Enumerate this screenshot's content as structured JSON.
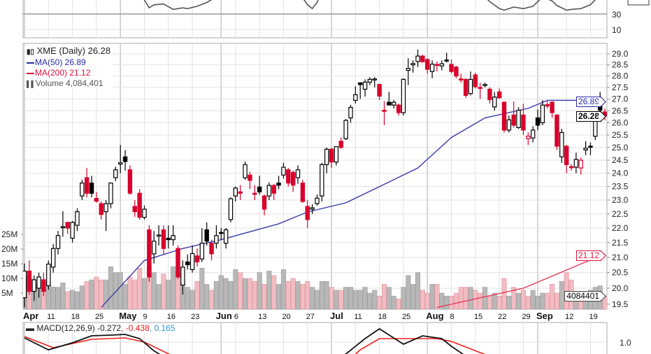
{
  "legend": {
    "title": "XME (Daily) 26.28",
    "ma50": "MA(50) 26.89",
    "ma200": "MA(200) 21.12",
    "volume": "Volume 4,084,401"
  },
  "macd_legend": {
    "label": "MACD(12,26,9) -0.272",
    "signal": ", -0.438",
    "hist": ", 0.165"
  },
  "tags": {
    "ma50": "26.89",
    "close": "26.28",
    "ma200": "21.12",
    "volume": "4084401"
  },
  "colors": {
    "up": "#000000",
    "down": "#d8002c",
    "ma50": "#3a3aaa",
    "ma200": "#e63a5a",
    "vol_up": "#b8b8b8",
    "vol_down": "#f2bcc2",
    "grid": "#e2e2e2"
  },
  "chart_data": {
    "type": "candlestick",
    "title": "XME (Daily)",
    "price_scale": "log",
    "ylim": [
      19.5,
      29.0
    ],
    "price_ticks": [
      "19.5",
      "20.0",
      "20.5",
      "21.0",
      "21.5",
      "22.0",
      "22.5",
      "23.0",
      "23.5",
      "24.0",
      "24.5",
      "25.0",
      "25.5",
      "26.0",
      "26.5",
      "27.0",
      "27.5",
      "28.0",
      "28.5",
      "29.0"
    ],
    "volume_ticks": [
      {
        "v": 5,
        "label": "5M"
      },
      {
        "v": 10,
        "label": "10M"
      },
      {
        "v": 15,
        "label": "15M"
      },
      {
        "v": 20,
        "label": "20M"
      },
      {
        "v": 25,
        "label": "25M"
      }
    ],
    "rsi_ticks": [
      {
        "v": 30,
        "label": "30"
      },
      {
        "v": 10,
        "label": "10"
      }
    ],
    "macd_ticks": [
      {
        "v": 1.0,
        "label": "1.0"
      }
    ],
    "x_ticks": [
      {
        "i": 0,
        "label": "Apr",
        "month": true
      },
      {
        "i": 5,
        "label": "11"
      },
      {
        "i": 10,
        "label": "18"
      },
      {
        "i": 15,
        "label": "25"
      },
      {
        "i": 20,
        "label": "May",
        "month": true
      },
      {
        "i": 25,
        "label": "9"
      },
      {
        "i": 30,
        "label": "16"
      },
      {
        "i": 35,
        "label": "23"
      },
      {
        "i": 41,
        "label": "Jun",
        "month": true
      },
      {
        "i": 44,
        "label": "6"
      },
      {
        "i": 49,
        "label": "13"
      },
      {
        "i": 54,
        "label": "20"
      },
      {
        "i": 59,
        "label": "27"
      },
      {
        "i": 64,
        "label": "Jul",
        "month": true
      },
      {
        "i": 69,
        "label": "11"
      },
      {
        "i": 74,
        "label": "18"
      },
      {
        "i": 79,
        "label": "25"
      },
      {
        "i": 84,
        "label": "Aug",
        "month": true
      },
      {
        "i": 89,
        "label": "8"
      },
      {
        "i": 94,
        "label": "15"
      },
      {
        "i": 99,
        "label": "22"
      },
      {
        "i": 104,
        "label": "29"
      },
      {
        "i": 107,
        "label": "Sep",
        "month": true
      },
      {
        "i": 113,
        "label": "12"
      },
      {
        "i": 118,
        "label": "19"
      }
    ],
    "ohlc": [
      [
        19.7,
        20.8,
        19.4,
        20.55
      ],
      [
        20.55,
        20.9,
        19.8,
        19.9
      ],
      [
        19.9,
        20.4,
        19.6,
        20.27
      ],
      [
        20.0,
        20.5,
        19.7,
        20.36
      ],
      [
        20.27,
        20.5,
        19.75,
        19.9
      ],
      [
        20.08,
        20.9,
        19.95,
        20.78
      ],
      [
        20.68,
        21.45,
        20.5,
        21.3
      ],
      [
        21.3,
        21.9,
        21.1,
        21.74
      ],
      [
        22.02,
        22.6,
        21.7,
        22.05
      ],
      [
        22.2,
        22.2,
        21.8,
        22.0
      ],
      [
        21.65,
        22.25,
        21.5,
        22.2
      ],
      [
        22.1,
        22.7,
        21.9,
        22.58
      ],
      [
        23.15,
        23.75,
        23.0,
        23.63
      ],
      [
        23.83,
        24.2,
        23.1,
        23.25
      ],
      [
        23.63,
        23.9,
        23.1,
        23.25
      ],
      [
        23.06,
        23.3,
        22.9,
        22.96
      ],
      [
        22.87,
        22.95,
        22.3,
        22.48
      ],
      [
        22.58,
        23.0,
        21.9,
        22.87
      ],
      [
        22.87,
        23.65,
        22.7,
        23.63
      ],
      [
        23.83,
        24.25,
        23.7,
        24.13
      ],
      [
        24.35,
        25.1,
        24.0,
        24.4
      ],
      [
        24.63,
        24.9,
        24.1,
        24.45
      ],
      [
        24.13,
        24.3,
        23.2,
        23.25
      ],
      [
        22.77,
        23.0,
        22.4,
        22.58
      ],
      [
        23.25,
        23.4,
        22.3,
        22.38
      ],
      [
        22.38,
        22.8,
        22.3,
        22.67
      ],
      [
        21.94,
        22.1,
        20.2,
        20.36
      ],
      [
        21.12,
        21.9,
        20.8,
        21.55
      ],
      [
        21.74,
        22.1,
        21.4,
        21.76
      ],
      [
        21.94,
        22.1,
        21.1,
        21.3
      ],
      [
        21.65,
        22.1,
        21.3,
        21.6
      ],
      [
        21.6,
        22.1,
        21.4,
        21.74
      ],
      [
        21.3,
        21.4,
        20.3,
        20.36
      ],
      [
        20.1,
        20.9,
        19.8,
        20.68
      ],
      [
        20.85,
        21.1,
        20.6,
        20.76
      ],
      [
        20.6,
        21.4,
        20.5,
        21.13
      ],
      [
        21.05,
        21.3,
        20.7,
        20.85
      ],
      [
        20.95,
        22.0,
        20.85,
        21.48
      ],
      [
        21.94,
        22.2,
        21.4,
        21.55
      ],
      [
        21.48,
        21.6,
        20.9,
        21.12
      ],
      [
        21.48,
        22.1,
        21.3,
        21.74
      ],
      [
        21.85,
        22.0,
        21.6,
        21.82
      ],
      [
        21.48,
        22.0,
        21.3,
        21.94
      ],
      [
        22.3,
        23.1,
        22.2,
        23.05
      ],
      [
        23.15,
        23.5,
        22.95,
        23.44
      ],
      [
        23.3,
        23.55,
        23.0,
        23.25
      ],
      [
        23.83,
        24.45,
        23.75,
        24.33
      ],
      [
        23.93,
        24.05,
        23.4,
        23.73
      ],
      [
        23.25,
        23.55,
        23.0,
        23.25
      ],
      [
        23.48,
        23.9,
        23.2,
        23.3
      ],
      [
        23.15,
        23.2,
        22.45,
        22.67
      ],
      [
        23.15,
        23.65,
        23.0,
        23.54
      ],
      [
        23.54,
        23.6,
        23.0,
        23.25
      ],
      [
        23.63,
        23.9,
        23.4,
        23.55
      ],
      [
        23.93,
        24.4,
        23.8,
        24.23
      ],
      [
        24.13,
        24.2,
        23.5,
        23.63
      ],
      [
        24.03,
        24.1,
        23.3,
        23.55
      ],
      [
        23.83,
        24.3,
        23.6,
        24.13
      ],
      [
        23.63,
        23.75,
        22.9,
        22.95
      ],
      [
        22.77,
        23.0,
        22.0,
        22.3
      ],
      [
        22.67,
        22.85,
        22.5,
        22.72
      ],
      [
        22.87,
        23.2,
        22.8,
        23.07
      ],
      [
        23.15,
        24.4,
        22.95,
        24.33
      ],
      [
        24.33,
        25.0,
        24.0,
        24.93
      ],
      [
        24.93,
        25.0,
        24.2,
        24.43
      ],
      [
        24.43,
        25.05,
        24.3,
        25.03
      ],
      [
        25.25,
        25.4,
        24.95,
        25.0
      ],
      [
        25.35,
        26.15,
        25.3,
        26.1
      ],
      [
        26.2,
        26.75,
        26.0,
        26.64
      ],
      [
        26.94,
        27.55,
        26.8,
        27.18
      ],
      [
        27.7,
        27.7,
        27.0,
        27.62
      ],
      [
        27.42,
        27.85,
        27.1,
        27.73
      ],
      [
        27.73,
        27.95,
        27.6,
        27.85
      ],
      [
        27.83,
        27.95,
        27.5,
        27.87
      ],
      [
        27.63,
        27.65,
        26.95,
        27.12
      ],
      [
        26.52,
        26.9,
        25.9,
        26.48
      ],
      [
        26.86,
        27.3,
        26.75,
        26.74
      ],
      [
        26.74,
        26.95,
        26.6,
        26.86
      ],
      [
        26.74,
        26.8,
        26.3,
        26.42
      ],
      [
        26.42,
        27.9,
        26.3,
        27.85
      ],
      [
        28.25,
        28.8,
        27.6,
        28.34
      ],
      [
        28.5,
        28.7,
        28.15,
        28.56
      ],
      [
        28.65,
        29.2,
        28.4,
        28.9
      ],
      [
        28.9,
        28.95,
        28.6,
        28.64
      ],
      [
        28.74,
        28.8,
        28.1,
        28.3
      ],
      [
        28.2,
        28.7,
        27.9,
        28.53
      ],
      [
        28.52,
        28.65,
        28.2,
        28.5
      ],
      [
        28.45,
        28.7,
        28.25,
        28.55
      ],
      [
        28.72,
        29.05,
        28.6,
        28.68
      ],
      [
        28.52,
        28.75,
        28.1,
        28.2
      ],
      [
        28.4,
        28.45,
        27.9,
        28.0
      ],
      [
        27.87,
        28.1,
        27.7,
        27.83
      ],
      [
        27.85,
        27.9,
        27.05,
        27.15
      ],
      [
        27.23,
        28.2,
        27.15,
        27.85
      ],
      [
        28.05,
        28.15,
        27.45,
        27.53
      ],
      [
        27.5,
        27.7,
        27.0,
        27.46
      ],
      [
        27.58,
        27.7,
        27.5,
        27.63
      ],
      [
        27.42,
        27.5,
        26.8,
        26.97
      ],
      [
        26.66,
        27.3,
        26.5,
        27.08
      ],
      [
        27.3,
        27.45,
        27.0,
        27.05
      ],
      [
        26.86,
        26.9,
        25.6,
        25.7
      ],
      [
        25.7,
        26.3,
        25.6,
        26.12
      ],
      [
        26.32,
        26.9,
        25.8,
        25.9
      ],
      [
        25.8,
        26.65,
        25.75,
        26.52
      ],
      [
        26.32,
        26.8,
        25.5,
        25.7
      ],
      [
        25.35,
        25.6,
        25.1,
        25.45
      ],
      [
        25.38,
        25.85,
        25.2,
        25.7
      ],
      [
        26.2,
        26.55,
        25.7,
        25.9
      ],
      [
        26.0,
        26.95,
        25.9,
        26.74
      ],
      [
        26.76,
        26.95,
        26.6,
        26.7
      ],
      [
        26.86,
        26.9,
        26.2,
        26.42
      ],
      [
        26.32,
        26.35,
        24.9,
        25.05
      ],
      [
        24.63,
        25.75,
        24.4,
        25.6
      ],
      [
        25.05,
        25.1,
        24.0,
        24.33
      ],
      [
        24.25,
        24.35,
        24.1,
        24.22
      ],
      [
        24.23,
        24.8,
        24.0,
        24.53
      ],
      [
        24.2,
        24.6,
        23.95,
        24.5
      ],
      [
        24.9,
        25.25,
        24.7,
        24.97
      ],
      [
        25.05,
        25.2,
        24.7,
        25.02
      ],
      [
        25.45,
        26.4,
        25.3,
        26.32
      ],
      [
        26.76,
        27.3,
        26.4,
        26.52
      ],
      [
        26.45,
        26.6,
        26.1,
        26.28
      ]
    ],
    "volume_millions": [
      11,
      10,
      8,
      7.6,
      6,
      9,
      7.1,
      7,
      8.5,
      5.5,
      6,
      5.5,
      7.5,
      9,
      9.5,
      10.5,
      9.5,
      9.5,
      14,
      12,
      12,
      8,
      10.5,
      9.5,
      13.5,
      10,
      14,
      12,
      8,
      11.5,
      9.5,
      14,
      12,
      9,
      7,
      6,
      9,
      13.5,
      8,
      6,
      9,
      11,
      10,
      9,
      13,
      12,
      10,
      10,
      9,
      12,
      8,
      12.5,
      11,
      8,
      13,
      9,
      10,
      9,
      8,
      9,
      7,
      6,
      9,
      9,
      7,
      6,
      6,
      7,
      7,
      6,
      6,
      7,
      5,
      6,
      4,
      8,
      7,
      4,
      3,
      7,
      11,
      8,
      12,
      6,
      5,
      8,
      8,
      5,
      4,
      4,
      5,
      7,
      7,
      7,
      6,
      5,
      7,
      4,
      5,
      4,
      10,
      4,
      7,
      5,
      6,
      4,
      6,
      4,
      5,
      5,
      8,
      5,
      9,
      12,
      9.5,
      5,
      5,
      5,
      6,
      7,
      7.5,
      4.08
    ],
    "ma50": [
      [
        16,
        19.4
      ],
      [
        25,
        20.9
      ],
      [
        33,
        21.3
      ],
      [
        41,
        21.6
      ],
      [
        53,
        22.15
      ],
      [
        59,
        22.57
      ],
      [
        67,
        22.9
      ],
      [
        76,
        23.67
      ],
      [
        82,
        24.2
      ],
      [
        89,
        25.4
      ],
      [
        96,
        26.2
      ],
      [
        105,
        26.6
      ],
      [
        109,
        26.94
      ],
      [
        115,
        26.94
      ],
      [
        121,
        26.89
      ]
    ],
    "ma200": [
      [
        86,
        19.4
      ],
      [
        104,
        20.0
      ],
      [
        121,
        21.12
      ]
    ],
    "rsi": [
      [
        0,
        60
      ],
      [
        24,
        58
      ],
      [
        26,
        38
      ],
      [
        27,
        42
      ],
      [
        29,
        43
      ],
      [
        31,
        36
      ],
      [
        33,
        38
      ],
      [
        34,
        37
      ],
      [
        36,
        40
      ],
      [
        38,
        45
      ],
      [
        40,
        52
      ],
      [
        57,
        60
      ],
      [
        59,
        42
      ],
      [
        60,
        37
      ],
      [
        61,
        45
      ],
      [
        62,
        60
      ],
      [
        95,
        58
      ],
      [
        97,
        46
      ],
      [
        99,
        37
      ],
      [
        100,
        35
      ],
      [
        102,
        39
      ],
      [
        104,
        37
      ],
      [
        106,
        40
      ],
      [
        108,
        52
      ],
      [
        110,
        47
      ],
      [
        111,
        41
      ],
      [
        113,
        35
      ],
      [
        114,
        36
      ],
      [
        116,
        37
      ],
      [
        118,
        42
      ],
      [
        120,
        55
      ],
      [
        121,
        60
      ]
    ],
    "macd": [
      [
        0,
        1.24
      ],
      [
        5,
        0.56
      ],
      [
        10,
        0.96
      ],
      [
        14,
        1.36
      ],
      [
        18,
        1.4
      ],
      [
        21,
        1.44
      ],
      [
        24,
        1.2
      ],
      [
        27,
        0.5
      ],
      [
        30,
        0.0
      ],
      [
        62,
        -0.2
      ],
      [
        67,
        0.32
      ],
      [
        71,
        1.2
      ],
      [
        74,
        1.76
      ],
      [
        79,
        0.88
      ],
      [
        83,
        1.36
      ],
      [
        87,
        1.2
      ],
      [
        89,
        0.76
      ],
      [
        92,
        0.2
      ],
      [
        95,
        -0.3
      ]
    ],
    "macd_signal": [
      [
        0,
        1.32
      ],
      [
        6,
        0.68
      ],
      [
        14,
        1.16
      ],
      [
        21,
        1.24
      ],
      [
        25,
        1.0
      ],
      [
        31,
        0.2
      ],
      [
        67,
        -0.2
      ],
      [
        70,
        0.56
      ],
      [
        74,
        1.2
      ],
      [
        80,
        1.2
      ],
      [
        86,
        1.2
      ],
      [
        89,
        1.04
      ],
      [
        95,
        0.4
      ],
      [
        99,
        0.0
      ]
    ]
  }
}
